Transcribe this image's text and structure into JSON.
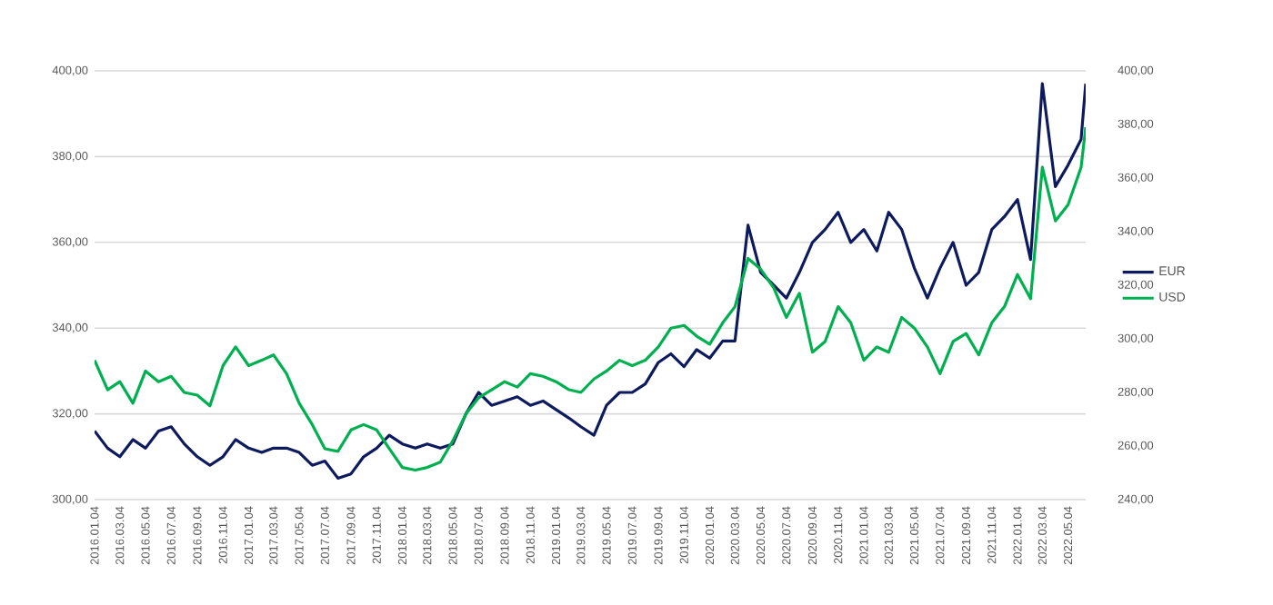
{
  "chart_data": {
    "type": "line",
    "x": [
      "2016-01-04",
      "2016-02-04",
      "2016-03-04",
      "2016-04-04",
      "2016-05-04",
      "2016-06-04",
      "2016-07-04",
      "2016-08-04",
      "2016-09-04",
      "2016-10-04",
      "2016-11-04",
      "2016-12-04",
      "2017-01-04",
      "2017-02-04",
      "2017-03-04",
      "2017-04-04",
      "2017-05-04",
      "2017-06-04",
      "2017-07-04",
      "2017-08-04",
      "2017-09-04",
      "2017-10-04",
      "2017-11-04",
      "2017-12-04",
      "2018-01-04",
      "2018-02-04",
      "2018-03-04",
      "2018-04-04",
      "2018-05-04",
      "2018-06-04",
      "2018-07-04",
      "2018-08-04",
      "2018-09-04",
      "2018-10-04",
      "2018-11-04",
      "2018-12-04",
      "2019-01-04",
      "2019-02-04",
      "2019-03-04",
      "2019-04-04",
      "2019-05-04",
      "2019-06-04",
      "2019-07-04",
      "2019-08-04",
      "2019-09-04",
      "2019-10-04",
      "2019-11-04",
      "2019-12-04",
      "2020-01-04",
      "2020-02-04",
      "2020-03-04",
      "2020-04-04",
      "2020-05-04",
      "2020-06-04",
      "2020-07-04",
      "2020-08-04",
      "2020-09-04",
      "2020-10-04",
      "2020-11-04",
      "2020-12-04",
      "2021-01-04",
      "2021-02-04",
      "2021-03-04",
      "2021-04-04",
      "2021-05-04",
      "2021-06-04",
      "2021-07-04",
      "2021-08-04",
      "2021-09-04",
      "2021-10-04",
      "2021-11-04",
      "2021-12-04",
      "2022-01-04",
      "2022-02-04",
      "2022-03-04",
      "2022-04-04",
      "2022-05-04",
      "2022-06-04",
      "2022-06-15"
    ],
    "series": [
      {
        "name": "EUR",
        "color": "#0d1b5e",
        "axis": "y",
        "values": [
          316,
          312,
          310,
          314,
          312,
          316,
          317,
          313,
          310,
          308,
          310,
          314,
          312,
          311,
          312,
          312,
          311,
          308,
          309,
          305,
          306,
          310,
          312,
          315,
          313,
          312,
          313,
          312,
          313,
          320,
          325,
          322,
          323,
          324,
          322,
          323,
          321,
          319,
          317,
          315,
          322,
          325,
          325,
          327,
          332,
          334,
          331,
          335,
          333,
          337,
          337,
          364,
          353,
          350,
          347,
          353,
          360,
          363,
          367,
          360,
          363,
          358,
          367,
          363,
          354,
          347,
          354,
          360,
          350,
          353,
          363,
          366,
          370,
          356,
          397,
          373,
          378,
          384,
          397
        ]
      },
      {
        "name": "USD",
        "color": "#00b050",
        "axis": "y2",
        "values": [
          292,
          281,
          284,
          276,
          288,
          284,
          286,
          280,
          279,
          275,
          290,
          297,
          290,
          292,
          294,
          287,
          276,
          268,
          259,
          258,
          266,
          268,
          266,
          259,
          252,
          251,
          252,
          254,
          262,
          272,
          278,
          281,
          284,
          282,
          287,
          286,
          284,
          281,
          280,
          285,
          288,
          292,
          290,
          292,
          297,
          304,
          305,
          301,
          298,
          306,
          312,
          330,
          326,
          319,
          308,
          317,
          295,
          299,
          312,
          306,
          292,
          297,
          295,
          308,
          304,
          297,
          287,
          299,
          302,
          294,
          306,
          312,
          324,
          315,
          364,
          344,
          350,
          364,
          379
        ]
      }
    ],
    "xlim": [
      "2016-01-04",
      "2022-06-15"
    ],
    "xticks": [
      {
        "value": "2016-01-04",
        "label": "2016.01.04"
      },
      {
        "value": "2016-03-04",
        "label": "2016.03.04"
      },
      {
        "value": "2016-05-04",
        "label": "2016.05.04"
      },
      {
        "value": "2016-07-04",
        "label": "2016.07.04"
      },
      {
        "value": "2016-09-04",
        "label": "2016.09.04"
      },
      {
        "value": "2016-11-04",
        "label": "2016.11.04"
      },
      {
        "value": "2017-01-04",
        "label": "2017.01.04"
      },
      {
        "value": "2017-03-04",
        "label": "2017.03.04"
      },
      {
        "value": "2017-05-04",
        "label": "2017.05.04"
      },
      {
        "value": "2017-07-04",
        "label": "2017.07.04"
      },
      {
        "value": "2017-09-04",
        "label": "2017.09.04"
      },
      {
        "value": "2017-11-04",
        "label": "2017.11.04"
      },
      {
        "value": "2018-01-04",
        "label": "2018.01.04"
      },
      {
        "value": "2018-03-04",
        "label": "2018.03.04"
      },
      {
        "value": "2018-05-04",
        "label": "2018.05.04"
      },
      {
        "value": "2018-07-04",
        "label": "2018.07.04"
      },
      {
        "value": "2018-09-04",
        "label": "2018.09.04"
      },
      {
        "value": "2018-11-04",
        "label": "2018.11.04"
      },
      {
        "value": "2019-01-04",
        "label": "2019.01.04"
      },
      {
        "value": "2019-03-04",
        "label": "2019.03.04"
      },
      {
        "value": "2019-05-04",
        "label": "2019.05.04"
      },
      {
        "value": "2019-07-04",
        "label": "2019.07.04"
      },
      {
        "value": "2019-09-04",
        "label": "2019.09.04"
      },
      {
        "value": "2019-11-04",
        "label": "2019.11.04"
      },
      {
        "value": "2020-01-04",
        "label": "2020.01.04"
      },
      {
        "value": "2020-03-04",
        "label": "2020.03.04"
      },
      {
        "value": "2020-05-04",
        "label": "2020.05.04"
      },
      {
        "value": "2020-07-04",
        "label": "2020.07.04"
      },
      {
        "value": "2020-09-04",
        "label": "2020.09.04"
      },
      {
        "value": "2020-11-04",
        "label": "2020.11.04"
      },
      {
        "value": "2021-01-04",
        "label": "2021.01.04"
      },
      {
        "value": "2021-03-04",
        "label": "2021.03.04"
      },
      {
        "value": "2021-05-04",
        "label": "2021.05.04"
      },
      {
        "value": "2021-07-04",
        "label": "2021.07.04"
      },
      {
        "value": "2021-09-04",
        "label": "2021.09.04"
      },
      {
        "value": "2021-11-04",
        "label": "2021.11.04"
      },
      {
        "value": "2022-01-04",
        "label": "2022.01.04"
      },
      {
        "value": "2022-03-04",
        "label": "2022.03.04"
      },
      {
        "value": "2022-05-04",
        "label": "2022.05.04"
      }
    ],
    "ylim": [
      300,
      400
    ],
    "yticks": [
      {
        "value": 300,
        "label": "300,00"
      },
      {
        "value": 320,
        "label": "320,00"
      },
      {
        "value": 340,
        "label": "340,00"
      },
      {
        "value": 360,
        "label": "360,00"
      },
      {
        "value": 380,
        "label": "380,00"
      },
      {
        "value": 400,
        "label": "400,00"
      }
    ],
    "y2lim": [
      240,
      400
    ],
    "y2ticks": [
      {
        "value": 240,
        "label": "240,00"
      },
      {
        "value": 260,
        "label": "260,00"
      },
      {
        "value": 280,
        "label": "280,00"
      },
      {
        "value": 300,
        "label": "300,00"
      },
      {
        "value": 320,
        "label": "320,00"
      },
      {
        "value": 340,
        "label": "340,00"
      },
      {
        "value": 360,
        "label": "360,00"
      },
      {
        "value": 380,
        "label": "380,00"
      },
      {
        "value": 400,
        "label": "400,00"
      }
    ],
    "grid": "y",
    "legend": "right",
    "marker": "none",
    "line_style": "solid"
  }
}
